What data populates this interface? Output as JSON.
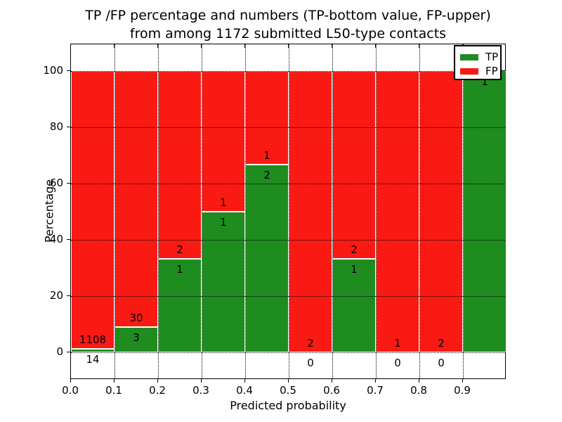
{
  "chart_data": {
    "type": "bar",
    "stacked": true,
    "normalized": "percentage",
    "title": "TP /FP percentage and numbers (TP-bottom value, FP-upper) from among 1172 submitted L50-type contacts",
    "title_line1": "TP /FP percentage and numbers (TP-bottom value, FP-upper)",
    "title_line2": "from among 1172 submitted L50-type contacts",
    "xlabel": "Predicted probability",
    "ylabel": "Percentage",
    "x_tick_labels": [
      "0.0",
      "0.1",
      "0.2",
      "0.3",
      "0.4",
      "0.5",
      "0.6",
      "0.7",
      "0.8",
      "0.9"
    ],
    "y_tick_values": [
      0,
      20,
      40,
      60,
      80,
      100
    ],
    "xlim": [
      0.0,
      1.0
    ],
    "ylim": [
      -10,
      110
    ],
    "grid": "dotted",
    "total_contacts": 1172,
    "legend": {
      "position": "upper right",
      "items": [
        {
          "label": "TP",
          "color": "#1e8c1e"
        },
        {
          "label": "FP",
          "color": "#fa1a14"
        }
      ]
    },
    "colors": {
      "tp": "#1e8c1e",
      "fp": "#fa1a14",
      "grid": "#000000",
      "background": "#ffffff"
    },
    "bins": [
      {
        "range": [
          0.0,
          0.1
        ],
        "tp": 14,
        "fp": 1108,
        "tp_pct": 1.25
      },
      {
        "range": [
          0.1,
          0.2
        ],
        "tp": 3,
        "fp": 30,
        "tp_pct": 9.09
      },
      {
        "range": [
          0.2,
          0.3
        ],
        "tp": 1,
        "fp": 2,
        "tp_pct": 33.33
      },
      {
        "range": [
          0.3,
          0.4
        ],
        "tp": 1,
        "fp": 1,
        "tp_pct": 50.0
      },
      {
        "range": [
          0.4,
          0.5
        ],
        "tp": 2,
        "fp": 1,
        "tp_pct": 66.67
      },
      {
        "range": [
          0.5,
          0.6
        ],
        "tp": 0,
        "fp": 2,
        "tp_pct": 0.0
      },
      {
        "range": [
          0.6,
          0.7
        ],
        "tp": 1,
        "fp": 2,
        "tp_pct": 33.33
      },
      {
        "range": [
          0.7,
          0.8
        ],
        "tp": 0,
        "fp": 1,
        "tp_pct": 0.0
      },
      {
        "range": [
          0.8,
          0.9
        ],
        "tp": 0,
        "fp": 2,
        "tp_pct": 0.0
      },
      {
        "range": [
          0.9,
          1.0
        ],
        "tp": 1,
        "fp": 0,
        "tp_pct": 100.0,
        "fp_label_hidden": true
      }
    ]
  }
}
